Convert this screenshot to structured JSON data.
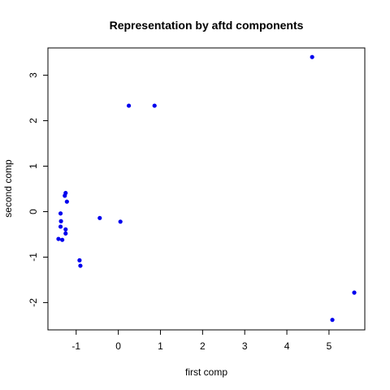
{
  "chart_data": {
    "type": "scatter",
    "title": "Representation by aftd components",
    "xlabel": "first comp",
    "ylabel": "second comp",
    "xlim": [
      -1.67,
      5.85
    ],
    "ylim": [
      -2.6,
      3.6
    ],
    "xticks": [
      -1,
      0,
      1,
      2,
      3,
      4,
      5
    ],
    "yticks": [
      -2,
      -1,
      0,
      1,
      2,
      3
    ],
    "grid": false,
    "point_color": "#0000ee",
    "series": [
      {
        "points": [
          {
            "x": 4.6,
            "y": 3.4
          },
          {
            "x": 0.25,
            "y": 2.33
          },
          {
            "x": 0.86,
            "y": 2.33
          },
          {
            "x": -1.25,
            "y": 0.41
          },
          {
            "x": -1.27,
            "y": 0.35
          },
          {
            "x": -1.22,
            "y": 0.22
          },
          {
            "x": -1.37,
            "y": -0.04
          },
          {
            "x": -0.44,
            "y": -0.14
          },
          {
            "x": 0.05,
            "y": -0.22
          },
          {
            "x": -1.36,
            "y": -0.21
          },
          {
            "x": -1.37,
            "y": -0.33
          },
          {
            "x": -1.25,
            "y": -0.39
          },
          {
            "x": -1.25,
            "y": -0.48
          },
          {
            "x": -1.42,
            "y": -0.6
          },
          {
            "x": -1.33,
            "y": -0.62
          },
          {
            "x": -0.92,
            "y": -1.07
          },
          {
            "x": -0.9,
            "y": -1.19
          },
          {
            "x": 5.6,
            "y": -1.78
          },
          {
            "x": 5.08,
            "y": -2.38
          }
        ]
      }
    ]
  }
}
